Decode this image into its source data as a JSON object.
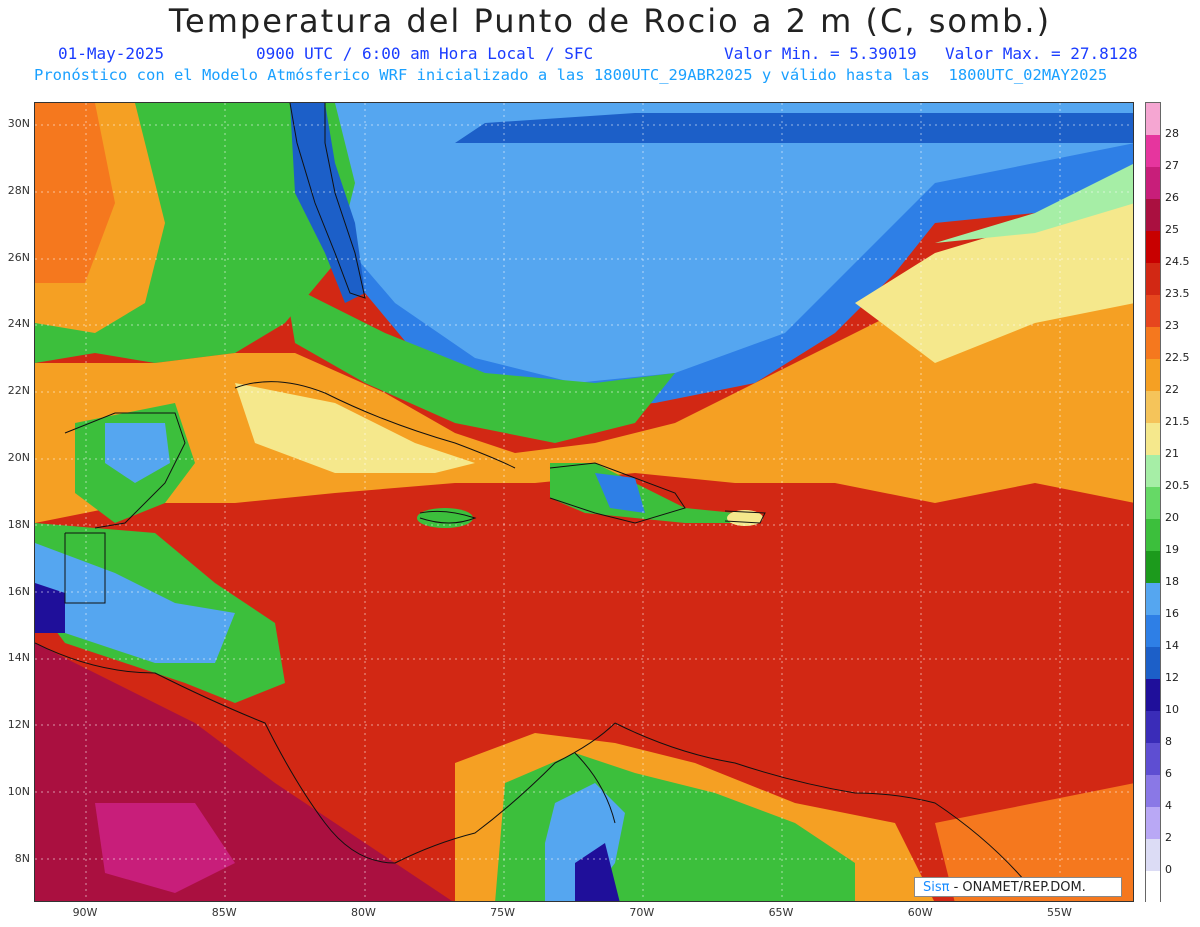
{
  "title": "Temperatura del Punto de Rocio a 2 m (C, somb.)",
  "date": "01-May-2025",
  "time_info": "0900 UTC / 6:00 am Hora Local / SFC",
  "min_label": "Valor Min. = 5.39019",
  "max_label": "Valor Max. = 27.8128",
  "model_info": "Pronóstico con el Modelo Atmósferico WRF inicializado a las 1800UTC_29ABR2025 y válido hasta las  1800UTC_02MAY2025",
  "credit": {
    "logo": "Sisπ",
    "text": " - ONAMET/REP.DOM."
  },
  "lat_labels": [
    "30N",
    "28N",
    "26N",
    "24N",
    "22N",
    "20N",
    "18N",
    "16N",
    "14N",
    "12N",
    "10N",
    "8N"
  ],
  "lon_labels": [
    "90W",
    "85W",
    "80W",
    "75W",
    "70W",
    "65W",
    "60W",
    "55W"
  ],
  "colorbar": {
    "labels": [
      "0",
      "2",
      "4",
      "6",
      "8",
      "10",
      "12",
      "14",
      "16",
      "18",
      "19",
      "20",
      "20.5",
      "21",
      "21.5",
      "22",
      "22.5",
      "23",
      "23.5",
      "24.5",
      "25",
      "26",
      "27",
      "28"
    ],
    "colors": [
      "#ffffff",
      "#dcdcf5",
      "#b9a8f5",
      "#8a78e6",
      "#5e4ed2",
      "#3a2cb8",
      "#1f0f9a",
      "#1c5fc8",
      "#2e7fe6",
      "#55a6f0",
      "#1c9a1c",
      "#3cbf3c",
      "#66d966",
      "#a6eea6",
      "#f5e88c",
      "#f5c45a",
      "#f5a023",
      "#f5781e",
      "#e6461e",
      "#d22814",
      "#c80000",
      "#aa1040",
      "#c81e7a",
      "#e6359e",
      "#f5a6d2"
    ]
  },
  "icons": {
    "pi": "pi-glyph"
  }
}
